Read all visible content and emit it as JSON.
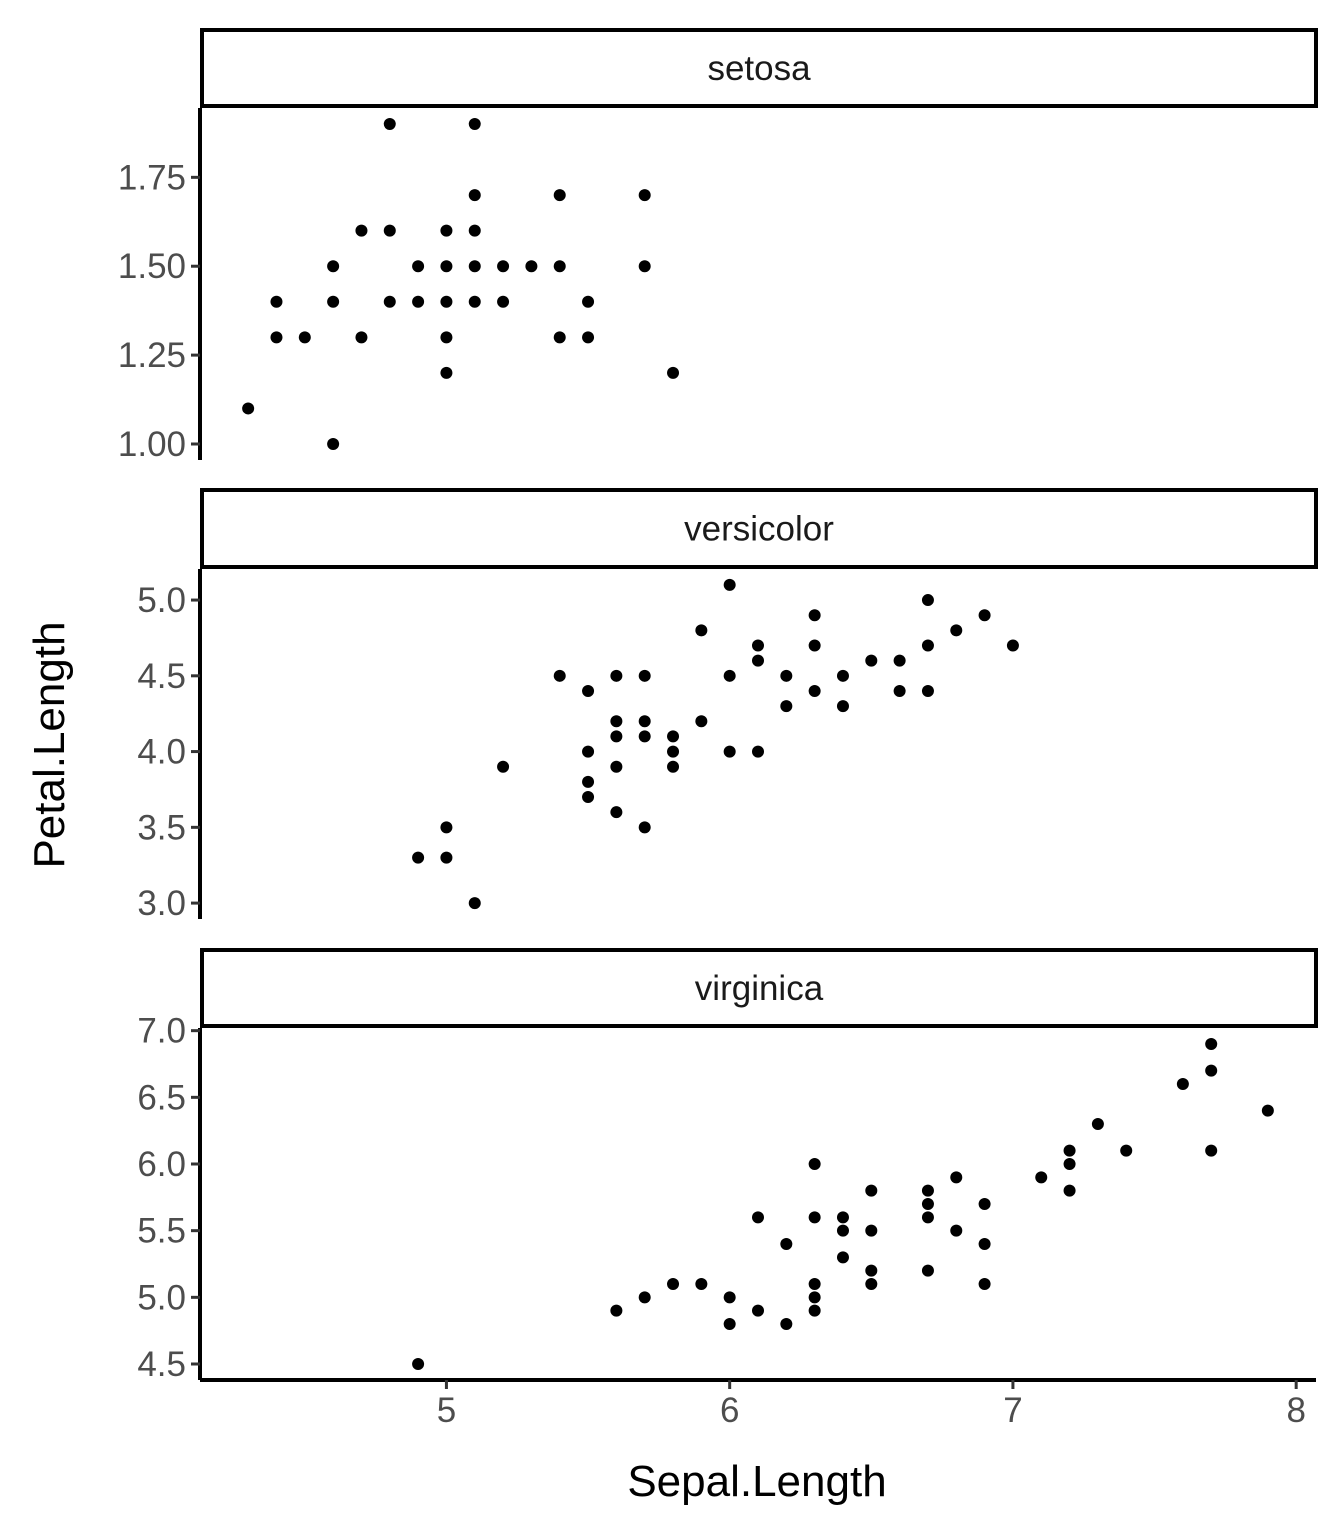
{
  "chart_data": {
    "type": "scatter",
    "xlabel": "Sepal.Length",
    "ylabel": "Petal.Length",
    "xlim": [
      4.13,
      8.07
    ],
    "xticks": [
      5,
      6,
      7,
      8
    ],
    "xtick_labels": [
      "5",
      "6",
      "7",
      "8"
    ],
    "grid": false,
    "legend": "none",
    "point_color": "#000000",
    "panels": [
      {
        "strip": "setosa",
        "ylim": [
          0.955,
          1.945
        ],
        "yticks": [
          1.0,
          1.25,
          1.5,
          1.75
        ],
        "ytick_labels": [
          "1.00",
          "1.25",
          "1.50",
          "1.75"
        ],
        "points": [
          [
            4.3,
            1.1
          ],
          [
            4.4,
            1.4
          ],
          [
            4.4,
            1.3
          ],
          [
            4.5,
            1.3
          ],
          [
            4.6,
            1.0
          ],
          [
            4.6,
            1.4
          ],
          [
            4.6,
            1.5
          ],
          [
            4.7,
            1.3
          ],
          [
            4.7,
            1.6
          ],
          [
            4.8,
            1.9
          ],
          [
            4.8,
            1.6
          ],
          [
            4.8,
            1.4
          ],
          [
            4.9,
            1.5
          ],
          [
            4.9,
            1.4
          ],
          [
            5.0,
            1.6
          ],
          [
            5.0,
            1.5
          ],
          [
            5.0,
            1.4
          ],
          [
            5.0,
            1.3
          ],
          [
            5.0,
            1.2
          ],
          [
            5.1,
            1.9
          ],
          [
            5.1,
            1.7
          ],
          [
            5.1,
            1.6
          ],
          [
            5.1,
            1.5
          ],
          [
            5.1,
            1.4
          ],
          [
            5.2,
            1.5
          ],
          [
            5.2,
            1.4
          ],
          [
            5.3,
            1.5
          ],
          [
            5.4,
            1.7
          ],
          [
            5.4,
            1.5
          ],
          [
            5.4,
            1.3
          ],
          [
            5.5,
            1.4
          ],
          [
            5.5,
            1.3
          ],
          [
            5.7,
            1.7
          ],
          [
            5.7,
            1.5
          ],
          [
            5.8,
            1.2
          ]
        ]
      },
      {
        "strip": "versicolor",
        "ylim": [
          2.895,
          5.205
        ],
        "yticks": [
          3.0,
          3.5,
          4.0,
          4.5,
          5.0
        ],
        "ytick_labels": [
          "3.0",
          "3.5",
          "4.0",
          "4.5",
          "5.0"
        ],
        "points": [
          [
            4.9,
            3.3
          ],
          [
            5.0,
            3.5
          ],
          [
            5.0,
            3.3
          ],
          [
            5.1,
            3.0
          ],
          [
            5.2,
            3.9
          ],
          [
            5.4,
            4.5
          ],
          [
            5.5,
            4.4
          ],
          [
            5.5,
            4.0
          ],
          [
            5.5,
            3.8
          ],
          [
            5.5,
            3.7
          ],
          [
            5.6,
            4.5
          ],
          [
            5.6,
            4.2
          ],
          [
            5.6,
            4.1
          ],
          [
            5.6,
            3.9
          ],
          [
            5.6,
            3.6
          ],
          [
            5.7,
            4.5
          ],
          [
            5.7,
            4.2
          ],
          [
            5.7,
            4.1
          ],
          [
            5.7,
            3.5
          ],
          [
            5.8,
            4.1
          ],
          [
            5.8,
            4.0
          ],
          [
            5.8,
            3.9
          ],
          [
            5.9,
            4.8
          ],
          [
            5.9,
            4.2
          ],
          [
            6.0,
            5.1
          ],
          [
            6.0,
            4.5
          ],
          [
            6.0,
            4.0
          ],
          [
            6.1,
            4.7
          ],
          [
            6.1,
            4.6
          ],
          [
            6.1,
            4.0
          ],
          [
            6.2,
            4.5
          ],
          [
            6.2,
            4.3
          ],
          [
            6.3,
            4.9
          ],
          [
            6.3,
            4.7
          ],
          [
            6.3,
            4.4
          ],
          [
            6.4,
            4.5
          ],
          [
            6.4,
            4.3
          ],
          [
            6.5,
            4.6
          ],
          [
            6.6,
            4.6
          ],
          [
            6.6,
            4.4
          ],
          [
            6.7,
            5.0
          ],
          [
            6.7,
            4.7
          ],
          [
            6.7,
            4.4
          ],
          [
            6.8,
            4.8
          ],
          [
            6.9,
            4.9
          ],
          [
            7.0,
            4.7
          ]
        ]
      },
      {
        "strip": "virginica",
        "ylim": [
          4.38,
          7.02
        ],
        "yticks": [
          4.5,
          5.0,
          5.5,
          6.0,
          6.5,
          7.0
        ],
        "ytick_labels": [
          "4.5",
          "5.0",
          "5.5",
          "6.0",
          "6.5",
          "7.0"
        ],
        "points": [
          [
            4.9,
            4.5
          ],
          [
            5.6,
            4.9
          ],
          [
            5.7,
            5.0
          ],
          [
            5.8,
            5.1
          ],
          [
            5.9,
            5.1
          ],
          [
            6.0,
            5.0
          ],
          [
            6.0,
            4.8
          ],
          [
            6.1,
            5.6
          ],
          [
            6.1,
            4.9
          ],
          [
            6.2,
            5.4
          ],
          [
            6.2,
            4.8
          ],
          [
            6.3,
            6.0
          ],
          [
            6.3,
            5.6
          ],
          [
            6.3,
            5.1
          ],
          [
            6.3,
            5.0
          ],
          [
            6.3,
            4.9
          ],
          [
            6.4,
            5.6
          ],
          [
            6.4,
            5.5
          ],
          [
            6.4,
            5.3
          ],
          [
            6.5,
            5.8
          ],
          [
            6.5,
            5.5
          ],
          [
            6.5,
            5.2
          ],
          [
            6.5,
            5.1
          ],
          [
            6.7,
            5.8
          ],
          [
            6.7,
            5.7
          ],
          [
            6.7,
            5.6
          ],
          [
            6.7,
            5.2
          ],
          [
            6.8,
            5.9
          ],
          [
            6.8,
            5.5
          ],
          [
            6.9,
            5.7
          ],
          [
            6.9,
            5.4
          ],
          [
            6.9,
            5.1
          ],
          [
            7.1,
            5.9
          ],
          [
            7.2,
            6.1
          ],
          [
            7.2,
            6.0
          ],
          [
            7.2,
            5.8
          ],
          [
            7.3,
            6.3
          ],
          [
            7.4,
            6.1
          ],
          [
            7.6,
            6.6
          ],
          [
            7.7,
            6.9
          ],
          [
            7.7,
            6.7
          ],
          [
            7.7,
            6.1
          ],
          [
            7.9,
            6.4
          ]
        ]
      }
    ]
  }
}
